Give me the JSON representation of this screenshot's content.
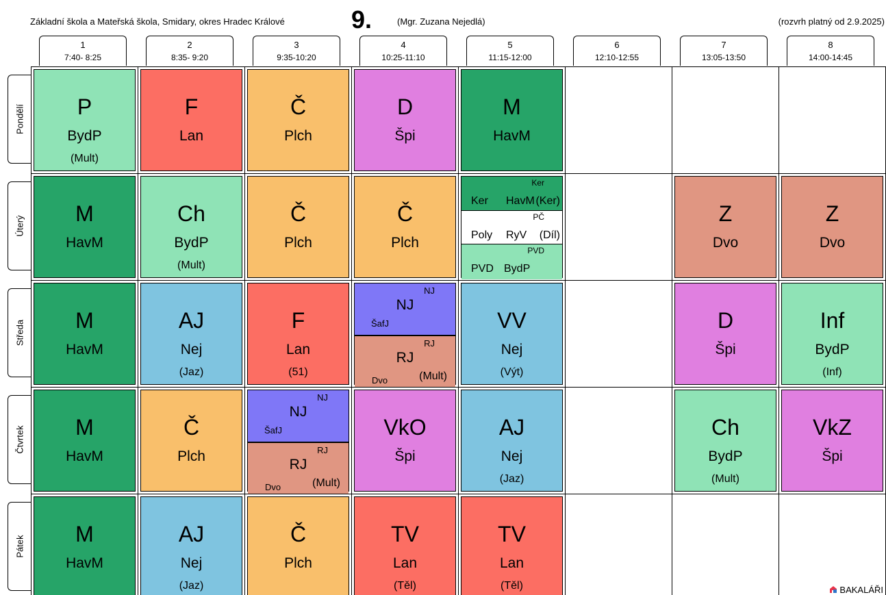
{
  "header": {
    "school": "Základní škola a Mateřská škola, Smidary, okres Hradec Králové",
    "class_name": "9.",
    "teacher": "(Mgr. Zuzana Nejedlá)",
    "validity": "(rozvrh platný od 2.9.2025)"
  },
  "periods": [
    {
      "num": "1",
      "time": "7:40- 8:25"
    },
    {
      "num": "2",
      "time": "8:35- 9:20"
    },
    {
      "num": "3",
      "time": "9:35-10:20"
    },
    {
      "num": "4",
      "time": "10:25-11:10"
    },
    {
      "num": "5",
      "time": "11:15-12:00"
    },
    {
      "num": "6",
      "time": "12:10-12:55"
    },
    {
      "num": "7",
      "time": "13:05-13:50"
    },
    {
      "num": "8",
      "time": "14:00-14:45"
    }
  ],
  "days": [
    {
      "label": "Pondělí",
      "lessons": [
        {
          "type": "single",
          "subject": "P",
          "teacher": "BydP",
          "room": "(Mult)",
          "color": "#8FE3B6"
        },
        {
          "type": "single",
          "subject": "F",
          "teacher": "Lan",
          "room": "",
          "color": "#FC6E63"
        },
        {
          "type": "single",
          "subject": "Č",
          "teacher": "Plch",
          "room": "",
          "color": "#F9BF6B"
        },
        {
          "type": "single",
          "subject": "D",
          "teacher": "Špi",
          "room": "",
          "color": "#E07FE0"
        },
        {
          "type": "single",
          "subject": "M",
          "teacher": "HavM",
          "room": "",
          "color": "#26A468"
        },
        {
          "type": "empty"
        },
        {
          "type": "empty"
        },
        {
          "type": "empty"
        }
      ]
    },
    {
      "label": "Úterý",
      "lessons": [
        {
          "type": "single",
          "subject": "M",
          "teacher": "HavM",
          "room": "",
          "color": "#26A468"
        },
        {
          "type": "single",
          "subject": "Ch",
          "teacher": "BydP",
          "room": "(Mult)",
          "color": "#8FE3B6"
        },
        {
          "type": "single",
          "subject": "Č",
          "teacher": "Plch",
          "room": "",
          "color": "#F9BF6B"
        },
        {
          "type": "single",
          "subject": "Č",
          "teacher": "Plch",
          "room": "",
          "color": "#F9BF6B"
        },
        {
          "type": "triple",
          "groups": [
            {
              "group": "Ker",
              "subject": "Ker",
              "teacher": "HavM",
              "room": "(Ker)",
              "color": "#26A468"
            },
            {
              "group": "PČ",
              "subject": "Poly",
              "teacher": "RyV",
              "room": "(Díl)",
              "color": "#FFFFFF"
            },
            {
              "group": "PVD",
              "subject": "PVD",
              "teacher": "BydP",
              "room": "",
              "color": "#8FE3B6"
            }
          ]
        },
        {
          "type": "empty"
        },
        {
          "type": "single",
          "subject": "Z",
          "teacher": "Dvo",
          "room": "",
          "color": "#E09682"
        },
        {
          "type": "single",
          "subject": "Z",
          "teacher": "Dvo",
          "room": "",
          "color": "#E09682"
        }
      ]
    },
    {
      "label": "Středa",
      "lessons": [
        {
          "type": "single",
          "subject": "M",
          "teacher": "HavM",
          "room": "",
          "color": "#26A468"
        },
        {
          "type": "single",
          "subject": "AJ",
          "teacher": "Nej",
          "room": "(Jaz)",
          "color": "#7FC4E0"
        },
        {
          "type": "single",
          "subject": "F",
          "teacher": "Lan",
          "room": "(51)",
          "color": "#FC6E63"
        },
        {
          "type": "double",
          "groups": [
            {
              "group": "NJ",
              "subject": "NJ",
              "teacher": "ŠafJ",
              "room": "",
              "color": "#7F77F7"
            },
            {
              "group": "RJ",
              "subject": "RJ",
              "teacher": "Dvo",
              "room": "(Mult)",
              "color": "#E09682"
            }
          ]
        },
        {
          "type": "single",
          "subject": "VV",
          "teacher": "Nej",
          "room": "(Výt)",
          "color": "#7FC4E0"
        },
        {
          "type": "empty"
        },
        {
          "type": "single",
          "subject": "D",
          "teacher": "Špi",
          "room": "",
          "color": "#E07FE0"
        },
        {
          "type": "single",
          "subject": "Inf",
          "teacher": "BydP",
          "room": "(Inf)",
          "color": "#8FE3B6"
        }
      ]
    },
    {
      "label": "Čtvrtek",
      "lessons": [
        {
          "type": "single",
          "subject": "M",
          "teacher": "HavM",
          "room": "",
          "color": "#26A468"
        },
        {
          "type": "single",
          "subject": "Č",
          "teacher": "Plch",
          "room": "",
          "color": "#F9BF6B"
        },
        {
          "type": "double",
          "groups": [
            {
              "group": "NJ",
              "subject": "NJ",
              "teacher": "ŠafJ",
              "room": "",
              "color": "#7F77F7"
            },
            {
              "group": "RJ",
              "subject": "RJ",
              "teacher": "Dvo",
              "room": "(Mult)",
              "color": "#E09682"
            }
          ]
        },
        {
          "type": "single",
          "subject": "VkO",
          "teacher": "Špi",
          "room": "",
          "color": "#E07FE0"
        },
        {
          "type": "single",
          "subject": "AJ",
          "teacher": "Nej",
          "room": "(Jaz)",
          "color": "#7FC4E0"
        },
        {
          "type": "empty"
        },
        {
          "type": "single",
          "subject": "Ch",
          "teacher": "BydP",
          "room": "(Mult)",
          "color": "#8FE3B6"
        },
        {
          "type": "single",
          "subject": "VkZ",
          "teacher": "Špi",
          "room": "",
          "color": "#E07FE0"
        }
      ]
    },
    {
      "label": "Pátek",
      "lessons": [
        {
          "type": "single",
          "subject": "M",
          "teacher": "HavM",
          "room": "",
          "color": "#26A468"
        },
        {
          "type": "single",
          "subject": "AJ",
          "teacher": "Nej",
          "room": "(Jaz)",
          "color": "#7FC4E0"
        },
        {
          "type": "single",
          "subject": "Č",
          "teacher": "Plch",
          "room": "",
          "color": "#F9BF6B"
        },
        {
          "type": "single",
          "subject": "TV",
          "teacher": "Lan",
          "room": "(Těl)",
          "color": "#FC6E63"
        },
        {
          "type": "single",
          "subject": "TV",
          "teacher": "Lan",
          "room": "(Těl)",
          "color": "#FC6E63"
        },
        {
          "type": "empty"
        },
        {
          "type": "empty"
        },
        {
          "type": "empty"
        }
      ]
    }
  ],
  "branding": {
    "label": "BAKALÁŘI",
    "logo_icon": "bakalari-logo-icon",
    "logo_colors": [
      "#E8334A",
      "#2E74C9"
    ]
  }
}
